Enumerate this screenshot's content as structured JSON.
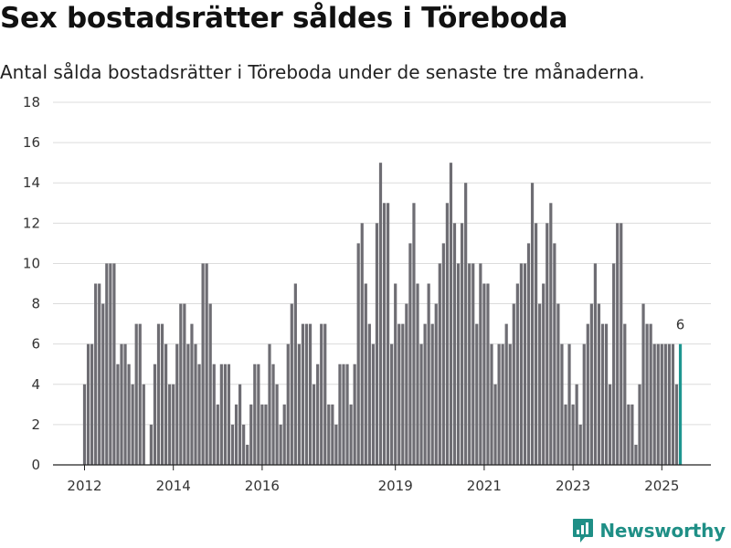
{
  "title": "Sex bostadsrätter såldes i Töreboda",
  "subtitle": "Antal sålda bostadsrätter i Töreboda under de senaste tre månaderna.",
  "brand": {
    "name": "Newsworthy",
    "icon": "newsworthy-logo-icon",
    "color": "#1f8f86"
  },
  "chart_data": {
    "type": "bar",
    "title": "Sex bostadsrätter såldes i Töreboda",
    "xlabel": "",
    "ylabel": "",
    "ylim": [
      0,
      18
    ],
    "yticks": [
      0,
      2,
      4,
      6,
      8,
      10,
      12,
      14,
      16,
      18
    ],
    "xticks": [
      {
        "label": "2012",
        "index": 0
      },
      {
        "label": "2014",
        "index": 24
      },
      {
        "label": "2016",
        "index": 48
      },
      {
        "label": "2019",
        "index": 84
      },
      {
        "label": "2021",
        "index": 108
      },
      {
        "label": "2023",
        "index": 132
      },
      {
        "label": "2025",
        "index": 156
      }
    ],
    "grid": true,
    "bar_color": "#6e6d73",
    "highlight_color": "#1e9690",
    "highlight_label": "6",
    "x_start": "2012-01",
    "frequency": "monthly",
    "values": [
      4,
      6,
      6,
      9,
      9,
      8,
      10,
      10,
      10,
      5,
      6,
      6,
      5,
      4,
      7,
      7,
      4,
      0,
      2,
      5,
      7,
      7,
      6,
      4,
      4,
      6,
      8,
      8,
      6,
      7,
      6,
      5,
      10,
      10,
      8,
      5,
      3,
      5,
      5,
      5,
      2,
      3,
      4,
      2,
      1,
      3,
      5,
      5,
      3,
      3,
      6,
      5,
      4,
      2,
      3,
      6,
      8,
      9,
      6,
      7,
      7,
      7,
      4,
      5,
      7,
      7,
      3,
      3,
      2,
      5,
      5,
      5,
      3,
      5,
      11,
      12,
      9,
      7,
      6,
      12,
      15,
      13,
      13,
      6,
      9,
      7,
      7,
      8,
      11,
      13,
      9,
      6,
      7,
      9,
      7,
      8,
      10,
      11,
      13,
      15,
      12,
      10,
      12,
      14,
      10,
      10,
      7,
      10,
      9,
      9,
      6,
      4,
      6,
      6,
      7,
      6,
      8,
      9,
      10,
      10,
      11,
      14,
      12,
      8,
      9,
      12,
      13,
      11,
      8,
      6,
      3,
      6,
      3,
      4,
      2,
      6,
      7,
      8,
      10,
      8,
      7,
      7,
      4,
      10,
      12,
      12,
      7,
      3,
      3,
      1,
      4,
      8,
      7,
      7,
      6,
      6,
      6,
      6,
      6,
      6,
      4,
      6
    ]
  }
}
